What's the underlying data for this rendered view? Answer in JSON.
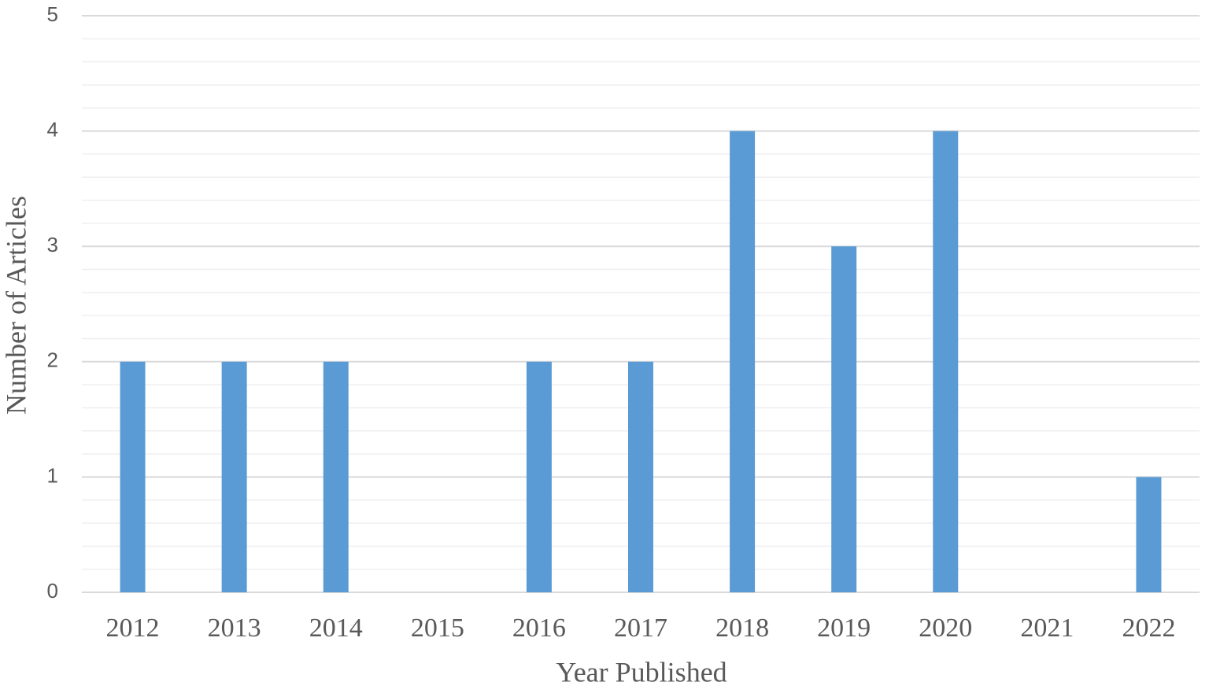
{
  "chart_data": {
    "type": "bar",
    "x_label": "Year Published",
    "y_label": "Number of Articles",
    "categories": [
      "2012",
      "2013",
      "2014",
      "2015",
      "2016",
      "2017",
      "2018",
      "2019",
      "2020",
      "2021",
      "2022"
    ],
    "values": [
      2,
      2,
      2,
      0,
      2,
      2,
      4,
      3,
      4,
      0,
      1
    ],
    "color": "#5b9bd5",
    "ylim": [
      0,
      5
    ],
    "yticks": [
      0,
      1,
      2,
      3,
      4,
      5
    ],
    "minor_yticks": [
      0.2,
      0.4,
      0.6,
      0.8,
      1.2,
      1.4,
      1.6,
      1.8,
      2.2,
      2.4,
      2.6,
      2.8,
      3.2,
      3.4,
      3.6,
      3.8,
      4.2,
      4.4,
      4.6,
      4.8
    ],
    "grid": true
  }
}
